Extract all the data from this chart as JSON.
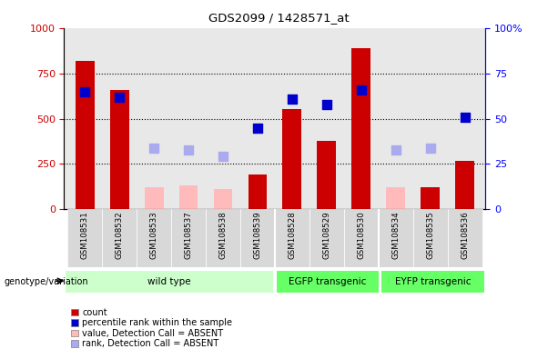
{
  "title": "GDS2099 / 1428571_at",
  "samples": [
    "GSM108531",
    "GSM108532",
    "GSM108533",
    "GSM108537",
    "GSM108538",
    "GSM108539",
    "GSM108528",
    "GSM108529",
    "GSM108530",
    "GSM108534",
    "GSM108535",
    "GSM108536"
  ],
  "groups": [
    {
      "label": "wild type",
      "start": 0,
      "end": 6,
      "color": "#ccffcc"
    },
    {
      "label": "EGFP transgenic",
      "start": 6,
      "end": 9,
      "color": "#66ff66"
    },
    {
      "label": "EYFP transgenic",
      "start": 9,
      "end": 12,
      "color": "#66ff66"
    }
  ],
  "count": [
    820,
    660,
    null,
    null,
    null,
    190,
    555,
    380,
    890,
    null,
    120,
    265
  ],
  "count_absent": [
    null,
    null,
    120,
    130,
    110,
    null,
    null,
    null,
    null,
    120,
    null,
    null
  ],
  "percentile_rank": [
    65,
    62,
    null,
    null,
    null,
    45,
    61,
    58,
    66,
    null,
    null,
    51
  ],
  "rank_absent": [
    null,
    null,
    34,
    33,
    29,
    null,
    null,
    null,
    null,
    33,
    34,
    null
  ],
  "ylim_left": [
    0,
    1000
  ],
  "ylim_right": [
    0,
    100
  ],
  "yticks_left": [
    0,
    250,
    500,
    750,
    1000
  ],
  "yticks_right": [
    0,
    25,
    50,
    75,
    100
  ],
  "bar_color_count": "#cc0000",
  "bar_color_absent": "#ffbbbb",
  "square_color_present": "#0000cc",
  "square_color_absent": "#aaaaee",
  "plot_bg": "#e8e8e8",
  "legend_items": [
    {
      "label": "count",
      "color": "#cc0000"
    },
    {
      "label": "percentile rank within the sample",
      "color": "#0000cc"
    },
    {
      "label": "value, Detection Call = ABSENT",
      "color": "#ffbbbb"
    },
    {
      "label": "rank, Detection Call = ABSENT",
      "color": "#aaaaee"
    }
  ]
}
